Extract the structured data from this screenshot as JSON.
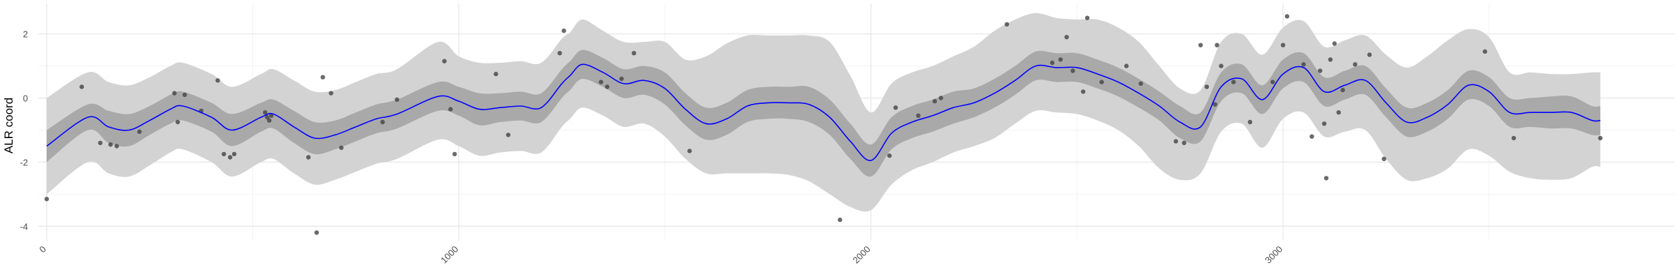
{
  "chart_data": {
    "type": "line",
    "title": "",
    "xlabel": "",
    "ylabel": "ALR coord",
    "xlim": [
      -20,
      3950
    ],
    "ylim": [
      -4.45,
      2.95
    ],
    "xticks": [
      0,
      1000,
      2000,
      3000
    ],
    "xtick_labels": [
      "0",
      "1000",
      "2000",
      "3000"
    ],
    "xtick_label_angle": -45,
    "yticks": [
      -4,
      -2,
      0,
      2
    ],
    "ytick_labels": [
      "-4",
      "-2",
      "0",
      "2"
    ],
    "grid": true,
    "legend": "none",
    "colors": {
      "mean_line": "#0000ff",
      "inner_band": "#a9a9a9",
      "outer_band": "#d3d3d3",
      "points": "#444444",
      "grid_major": "#e8e8e8",
      "grid_minor": "#f3f3f3",
      "axis_text": "#4d4d4d",
      "axis_title": "#000000"
    },
    "series": [
      {
        "kind": "smooth_mean",
        "x": [
          0,
          100,
          150,
          200,
          250,
          300,
          330,
          400,
          450,
          520,
          550,
          600,
          650,
          700,
          750,
          800,
          850,
          950,
          1000,
          1050,
          1100,
          1150,
          1200,
          1250,
          1270,
          1300,
          1350,
          1400,
          1450,
          1500,
          1550,
          1600,
          1650,
          1700,
          1750,
          1800,
          1850,
          1900,
          1950,
          2000,
          2050,
          2100,
          2150,
          2200,
          2250,
          2300,
          2350,
          2400,
          2450,
          2500,
          2550,
          2600,
          2650,
          2700,
          2750,
          2800,
          2850,
          2900,
          2950,
          3000,
          3050,
          3100,
          3150,
          3200,
          3250,
          3300,
          3350,
          3400,
          3450,
          3500,
          3550,
          3600,
          3650,
          3700,
          3750,
          3770
        ],
        "y": [
          -1.5,
          -0.6,
          -0.9,
          -1.0,
          -0.7,
          -0.35,
          -0.25,
          -0.6,
          -1.0,
          -0.6,
          -0.5,
          -0.9,
          -1.25,
          -1.15,
          -0.9,
          -0.65,
          -0.5,
          0.05,
          -0.1,
          -0.35,
          -0.3,
          -0.25,
          -0.3,
          0.45,
          0.7,
          1.05,
          0.8,
          0.45,
          0.55,
          0.3,
          -0.35,
          -0.8,
          -0.65,
          -0.25,
          -0.15,
          -0.15,
          -0.2,
          -0.6,
          -1.35,
          -1.95,
          -1.1,
          -0.75,
          -0.55,
          -0.3,
          -0.15,
          0.15,
          0.55,
          1.0,
          0.95,
          0.95,
          0.75,
          0.5,
          0.15,
          -0.25,
          -0.75,
          -0.9,
          0.35,
          0.6,
          -0.05,
          0.75,
          0.95,
          0.2,
          0.4,
          0.55,
          -0.15,
          -0.75,
          -0.6,
          -0.2,
          0.4,
          0.2,
          -0.45,
          -0.45,
          -0.45,
          -0.45,
          -0.7,
          -0.7
        ],
        "inner_lower": [
          -2.0,
          -1.0,
          -1.4,
          -1.5,
          -1.15,
          -0.8,
          -0.7,
          -1.05,
          -1.5,
          -1.05,
          -0.95,
          -1.4,
          -1.75,
          -1.6,
          -1.35,
          -1.1,
          -0.95,
          -0.4,
          -0.55,
          -0.85,
          -0.75,
          -0.7,
          -0.75,
          0.0,
          0.25,
          0.6,
          0.35,
          0.0,
          0.1,
          -0.2,
          -0.85,
          -1.3,
          -1.15,
          -0.75,
          -0.65,
          -0.65,
          -0.75,
          -1.15,
          -1.9,
          -2.45,
          -1.6,
          -1.25,
          -1.05,
          -0.8,
          -0.6,
          -0.3,
          0.1,
          0.55,
          0.5,
          0.5,
          0.3,
          0.05,
          -0.3,
          -0.7,
          -1.25,
          -1.35,
          -0.1,
          0.15,
          -0.5,
          0.3,
          0.5,
          -0.25,
          -0.05,
          0.1,
          -0.6,
          -1.2,
          -1.05,
          -0.65,
          -0.05,
          -0.25,
          -0.9,
          -0.9,
          -0.95,
          -0.95,
          -1.15,
          -1.15
        ],
        "inner_upper": [
          -1.0,
          -0.2,
          -0.4,
          -0.5,
          -0.25,
          0.1,
          0.2,
          -0.15,
          -0.5,
          -0.15,
          -0.05,
          -0.4,
          -0.75,
          -0.7,
          -0.45,
          -0.2,
          -0.05,
          0.5,
          0.35,
          0.15,
          0.15,
          0.2,
          0.15,
          0.9,
          1.15,
          1.5,
          1.25,
          0.9,
          1.0,
          0.8,
          0.15,
          -0.3,
          -0.15,
          0.25,
          0.35,
          0.35,
          0.35,
          -0.05,
          -0.8,
          -1.45,
          -0.6,
          -0.25,
          -0.05,
          0.2,
          0.3,
          0.6,
          1.0,
          1.45,
          1.4,
          1.4,
          1.2,
          0.95,
          0.6,
          0.2,
          -0.25,
          -0.45,
          0.8,
          1.05,
          0.4,
          1.2,
          1.4,
          0.65,
          0.85,
          1.0,
          0.3,
          -0.3,
          -0.15,
          0.25,
          0.85,
          0.65,
          0.0,
          0.0,
          0.05,
          0.05,
          -0.25,
          -0.25
        ],
        "outer_lower": [
          -3.0,
          -2.0,
          -2.35,
          -2.45,
          -2.1,
          -1.7,
          -1.6,
          -2.0,
          -2.45,
          -2.0,
          -1.9,
          -2.35,
          -2.7,
          -2.55,
          -2.3,
          -2.05,
          -1.9,
          -1.3,
          -1.5,
          -1.8,
          -1.7,
          -1.65,
          -1.7,
          -0.9,
          -0.65,
          -0.3,
          -0.55,
          -0.9,
          -0.8,
          -1.2,
          -1.9,
          -2.35,
          -2.35,
          -2.35,
          -2.35,
          -2.4,
          -2.6,
          -3.0,
          -3.4,
          -3.5,
          -2.7,
          -2.25,
          -2.0,
          -1.7,
          -1.5,
          -1.25,
          -0.8,
          -0.4,
          -0.45,
          -0.5,
          -0.7,
          -1.0,
          -1.5,
          -2.2,
          -2.55,
          -2.35,
          -1.05,
          -0.8,
          -1.55,
          -0.65,
          -0.45,
          -1.2,
          -1.05,
          -1.0,
          -1.9,
          -2.55,
          -2.5,
          -2.2,
          -1.6,
          -1.8,
          -2.3,
          -2.5,
          -2.55,
          -2.5,
          -2.15,
          -2.15
        ],
        "outer_upper": [
          0.0,
          0.8,
          0.5,
          0.4,
          0.65,
          1.0,
          1.1,
          0.75,
          0.35,
          0.75,
          0.9,
          0.55,
          0.2,
          0.25,
          0.5,
          0.75,
          0.9,
          1.75,
          1.3,
          1.1,
          1.1,
          1.15,
          1.1,
          1.85,
          2.05,
          2.45,
          2.1,
          1.75,
          1.75,
          1.75,
          1.2,
          1.3,
          1.7,
          1.95,
          1.95,
          1.95,
          1.95,
          1.75,
          0.7,
          -0.45,
          0.45,
          0.8,
          1.0,
          1.3,
          1.6,
          2.1,
          2.45,
          2.65,
          2.5,
          2.45,
          2.45,
          2.2,
          1.75,
          1.0,
          0.3,
          0.25,
          1.75,
          2.0,
          1.35,
          2.2,
          2.4,
          1.6,
          1.8,
          1.95,
          1.35,
          0.95,
          1.3,
          1.8,
          2.15,
          1.9,
          0.8,
          0.8,
          0.75,
          0.75,
          0.8,
          0.8
        ]
      },
      {
        "kind": "points",
        "x": [
          0,
          85,
          130,
          155,
          170,
          225,
          310,
          318,
          335,
          375,
          415,
          430,
          445,
          455,
          530,
          535,
          540,
          545,
          635,
          655,
          670,
          690,
          715,
          815,
          850,
          965,
          980,
          990,
          1090,
          1120,
          1245,
          1255,
          1345,
          1360,
          1395,
          1425,
          1560,
          1925,
          2045,
          2060,
          2115,
          2155,
          2170,
          2330,
          2440,
          2460,
          2475,
          2490,
          2515,
          2525,
          2560,
          2620,
          2655,
          2740,
          2760,
          2800,
          2815,
          2835,
          2840,
          2850,
          2880,
          2920,
          2975,
          3000,
          3010,
          3050,
          3070,
          3090,
          3100,
          3105,
          3115,
          3125,
          3135,
          3145,
          3175,
          3210,
          3245,
          3490,
          3560,
          3770
        ],
        "y": [
          -3.15,
          0.35,
          -1.4,
          -1.45,
          -1.5,
          -1.05,
          0.15,
          -0.75,
          0.1,
          -0.4,
          0.55,
          -1.75,
          -1.85,
          -1.75,
          -0.45,
          -0.6,
          -0.7,
          -0.55,
          -1.85,
          -4.2,
          0.65,
          0.15,
          -1.55,
          -0.75,
          -0.05,
          1.15,
          -0.35,
          -1.75,
          0.75,
          -1.15,
          1.4,
          2.1,
          0.5,
          0.35,
          0.6,
          1.4,
          -1.65,
          -3.8,
          -1.8,
          -0.3,
          -0.55,
          -0.1,
          0.0,
          2.3,
          1.1,
          1.2,
          1.9,
          0.85,
          0.2,
          2.5,
          0.5,
          1.0,
          0.45,
          -1.35,
          -1.4,
          1.65,
          0.35,
          -0.2,
          1.65,
          1.0,
          0.5,
          -0.75,
          0.5,
          1.65,
          2.55,
          1.05,
          -1.2,
          0.85,
          -0.8,
          -2.5,
          1.2,
          1.7,
          -0.45,
          0.25,
          1.05,
          1.35,
          -1.9,
          1.45,
          -1.25,
          -1.25
        ]
      }
    ]
  }
}
